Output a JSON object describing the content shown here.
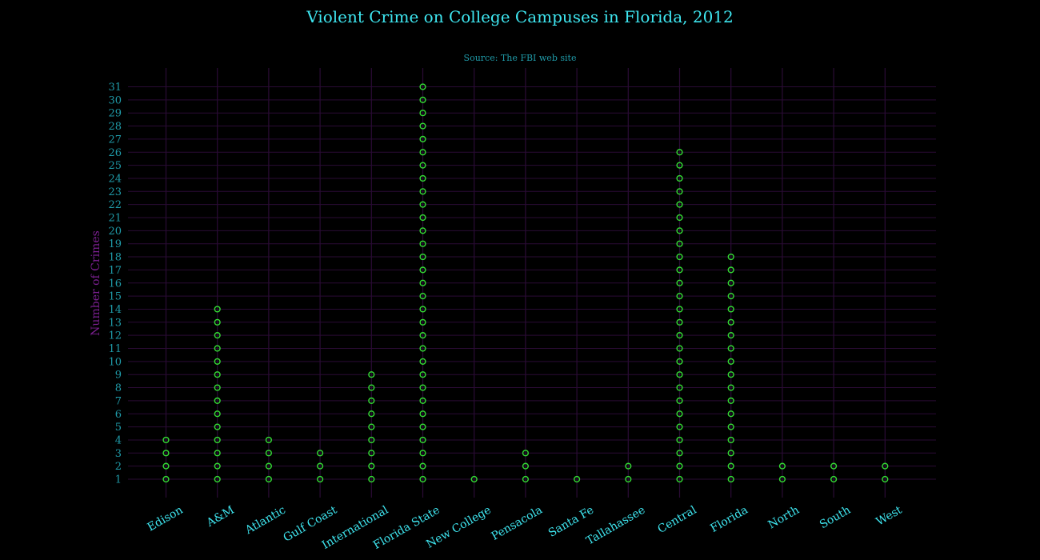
{
  "chart_data": {
    "type": "scatter",
    "title": "Violent Crime on College Campuses in Florida, 2012",
    "subtitle": "Source: The FBI web site",
    "ylabel": "Number of Crimes",
    "xlabel": "",
    "categories": [
      "Edison",
      "A&M",
      "Atlantic",
      "Gulf Coast",
      "International",
      "Florida State",
      "New College",
      "Pensacola",
      "Santa Fe",
      "Tallahassee",
      "Central",
      "Florida",
      "North",
      "South",
      "West"
    ],
    "values": [
      4,
      14,
      4,
      3,
      9,
      31,
      1,
      3,
      1,
      2,
      26,
      18,
      2,
      2,
      2
    ],
    "ylim": [
      1,
      31
    ],
    "yticks": [
      1,
      2,
      3,
      4,
      5,
      6,
      7,
      8,
      9,
      10,
      11,
      12,
      13,
      14,
      15,
      16,
      17,
      18,
      19,
      20,
      21,
      22,
      23,
      24,
      25,
      26,
      27,
      28,
      29,
      30,
      31
    ],
    "grid": true,
    "marker": "open-circle"
  },
  "colors": {
    "background": "#000000",
    "grid": "#2a0b35",
    "marker": "#33dd33",
    "title": "#3ee6f0",
    "tick_y": "#1f9aa8",
    "tick_x": "#3ee6f0",
    "ylabel": "#7a1f8f"
  }
}
